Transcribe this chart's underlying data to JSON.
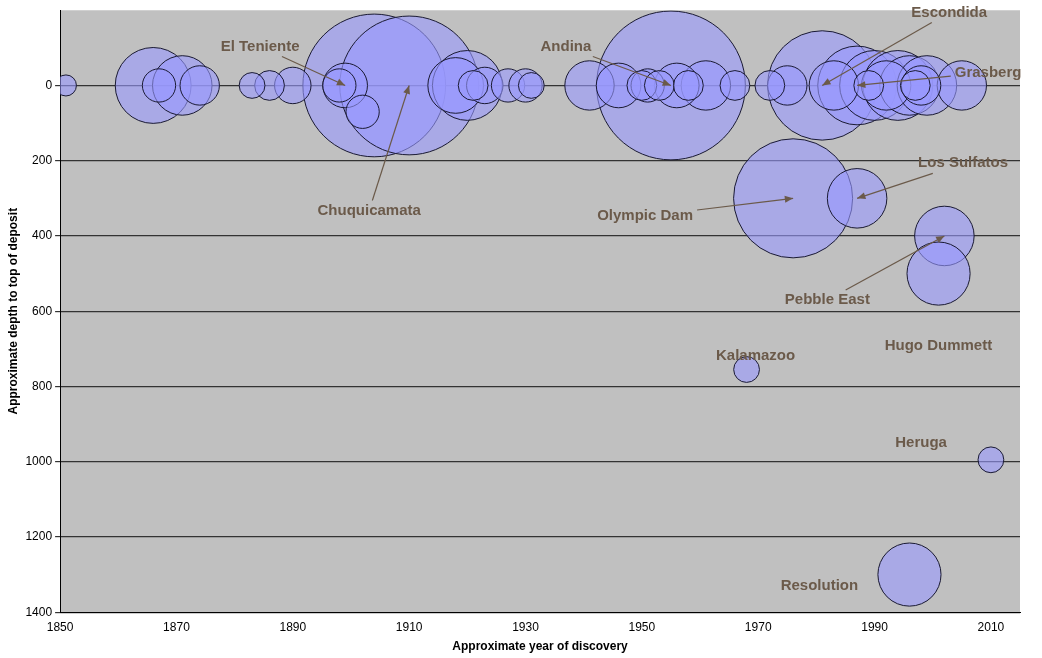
{
  "chart_data": {
    "type": "bubble",
    "xlabel": "Approximate year of discovery",
    "ylabel": "Approximate depth to top of deposit",
    "color": "#9999ff",
    "x": [
      1904,
      1910,
      1955,
      1976,
      1981,
      1866,
      1987,
      1990,
      1994,
      1871,
      1920,
      2002,
      2001,
      1996,
      1987,
      1996,
      1999,
      1918,
      1961,
      1941,
      1983,
      1992,
      2005,
      1946,
      1899,
      1956,
      1975,
      1874,
      1890,
      1867,
      1898,
      1902,
      1886,
      1923,
      1927,
      1930,
      1931,
      1951,
      1950,
      1953,
      1958,
      1966,
      1972,
      1921,
      1883,
      1989,
      1998,
      1997,
      2010,
      1968,
      1851
    ],
    "values": [
      0,
      0,
      0,
      300,
      0,
      0,
      0,
      0,
      0,
      0,
      0,
      400,
      500,
      1300,
      300,
      0,
      0,
      0,
      0,
      0,
      0,
      0,
      0,
      0,
      0,
      0,
      0,
      0,
      0,
      0,
      0,
      70,
      0,
      0,
      0,
      0,
      0,
      0,
      0,
      0,
      0,
      0,
      0,
      0,
      0,
      0,
      0,
      0,
      995,
      755,
      0
    ],
    "sizes": [
      0.92,
      0.87,
      1,
      0.64,
      0.54,
      0.26,
      0.28,
      0.22,
      0.22,
      0.16,
      0.22,
      0.16,
      0.18,
      0.18,
      0.16,
      0.16,
      0.16,
      0.14,
      0.11,
      0.11,
      0.11,
      0.11,
      0.11,
      0.09,
      0.09,
      0.09,
      0.07,
      0.07,
      0.06,
      0.05,
      0.05,
      0.05,
      0.04,
      0.06,
      0.05,
      0.05,
      0.03,
      0.05,
      0.04,
      0.04,
      0.04,
      0.04,
      0.04,
      0.04,
      0.03,
      0.04,
      0.07,
      0.04,
      0.03,
      0.03,
      0.02
    ],
    "xlim": [
      1850,
      2015
    ],
    "xticks": [
      1850,
      1870,
      1890,
      1910,
      1930,
      1950,
      1970,
      1990,
      2010
    ],
    "ylim": [
      1400,
      -200
    ],
    "yticks": [
      0,
      200,
      400,
      600,
      800,
      1000,
      1200,
      1400
    ],
    "grid": "y",
    "annotations": [
      {
        "text": "El Teniente",
        "x": 1899,
        "y": 0
      },
      {
        "text": "Chuquicamata",
        "x": 1910,
        "y": 0
      },
      {
        "text": "Andina",
        "x": 1955,
        "y": 0
      },
      {
        "text": "Escondida",
        "x": 1981,
        "y": 0
      },
      {
        "text": "Grasberg",
        "x": 1987,
        "y": 0
      },
      {
        "text": "Los Sulfatos",
        "x": 1987,
        "y": 300
      },
      {
        "text": "Olympic Dam",
        "x": 1976,
        "y": 300
      },
      {
        "text": "Pebble East",
        "x": 2002,
        "y": 400
      },
      "Hugo Dummett",
      {
        "text": "Kalamazoo",
        "x": 1968,
        "y": 755
      },
      "Heruga",
      "Resolution"
    ]
  }
}
